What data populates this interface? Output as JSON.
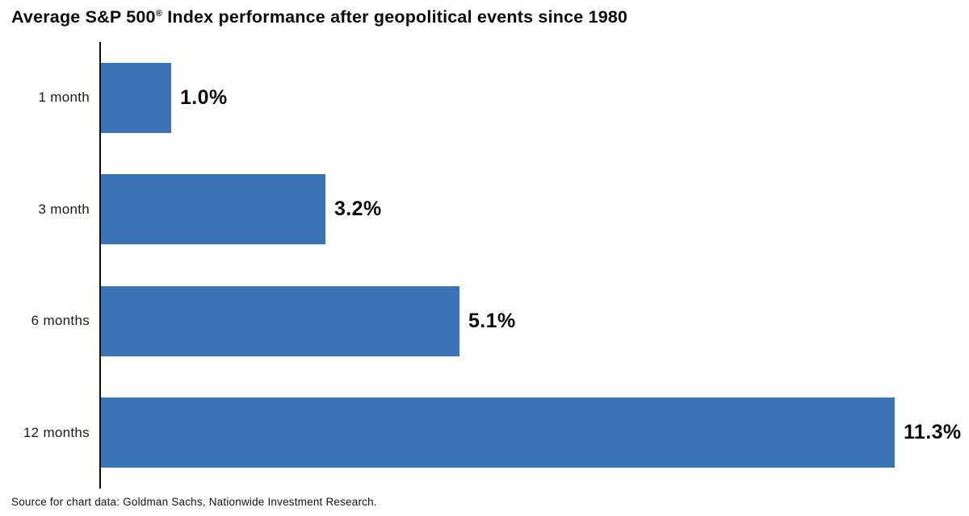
{
  "header": {
    "title_pre": "Average S&P 500",
    "title_reg": "®",
    "title_post": " Index performance after geopolitical events since 1980"
  },
  "chart_data": {
    "type": "bar",
    "orientation": "horizontal",
    "title": "Average S&P 500® Index performance after geopolitical events since 1980",
    "categories": [
      "1 month",
      "3 month",
      "6 months",
      "12 months"
    ],
    "values": [
      1.0,
      3.2,
      5.1,
      11.3
    ],
    "value_labels": [
      "1.0%",
      "3.2%",
      "5.1%",
      "11.3%"
    ],
    "unit": "%",
    "xlabel": "",
    "ylabel": "",
    "xlim": [
      0,
      12.4
    ],
    "grid": false,
    "legend": false,
    "bar_color": "#3b73b7",
    "axis_color": "#0b0b0b",
    "source": "Source for chart data: Goldman Sachs, Nationwide Investment Research."
  }
}
